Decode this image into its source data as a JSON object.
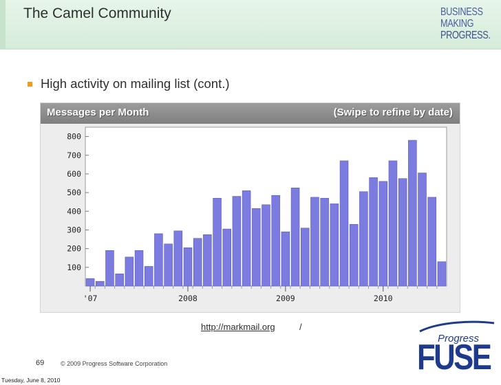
{
  "slide": {
    "title": "The Camel Community",
    "bullet": "High activity on mailing list (cont.)",
    "source_link": "http://markmail.org",
    "source_suffix": "/",
    "page_number": "69",
    "copyright": "© 2009 Progress Software Corporation",
    "date": "Tuesday, June 8, 2010"
  },
  "brand": {
    "lines": [
      "BUSINESS",
      "MAKING",
      "PROGRESS."
    ],
    "fuse_small": "Progress",
    "fuse_big": "FUSE"
  },
  "colors": {
    "bar": "#7b7be0",
    "bar_stroke": "#5a5ac0",
    "brand_blue": "#1d3a8c",
    "bullet": "#f59a23"
  },
  "chart_data": {
    "type": "bar",
    "title": "Messages per Month",
    "hint": "(Swipe to refine by date)",
    "ylim": [
      0,
      850
    ],
    "yticks": [
      100,
      200,
      300,
      400,
      500,
      600,
      700,
      800
    ],
    "xticks": [
      {
        "label": "'07",
        "index": 0.5
      },
      {
        "label": "2008",
        "index": 10.5
      },
      {
        "label": "2009",
        "index": 20.5
      },
      {
        "label": "2010",
        "index": 30.5
      }
    ],
    "values": [
      40,
      25,
      190,
      65,
      155,
      190,
      105,
      280,
      225,
      295,
      205,
      255,
      275,
      470,
      305,
      480,
      510,
      415,
      435,
      485,
      290,
      525,
      310,
      475,
      470,
      440,
      670,
      330,
      505,
      580,
      560,
      670,
      575,
      780,
      605,
      475,
      130
    ],
    "grid": false
  }
}
